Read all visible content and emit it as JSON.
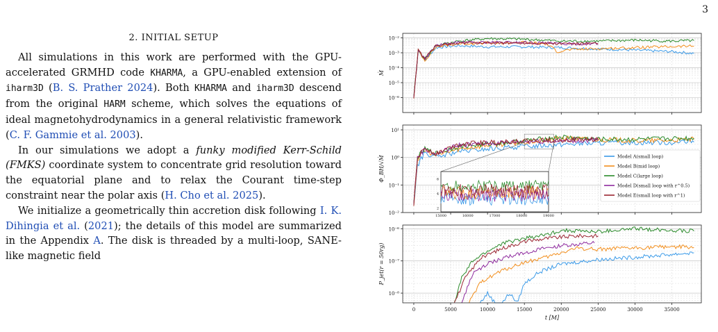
{
  "page_number": "3",
  "section": {
    "title": "2. INITIAL SETUP"
  },
  "paragraphs": {
    "p1": {
      "a": "All simulations in this work are performed with the GPU-accelerated GRMHD code ",
      "code1": "KHARMA",
      "b": ", a GPU-enabled extension of ",
      "code2": "iharm3D",
      "c": " (",
      "cite1": "B. S. Prather 2024",
      "d": "). Both ",
      "code3": "KHARMA",
      "e": " and ",
      "code4": "iharm3D",
      "f": " descend from the original ",
      "code5": "HARM",
      "g": " scheme, which solves the equations of ideal magnetohydrodynamics in a general relativistic framework (",
      "cite2": "C. F. Gammie et al. 2003",
      "h": ")."
    },
    "p2": {
      "a": "In our simulations we adopt a ",
      "em": "funky modified Kerr-Schild (FMKS)",
      "b": " coordinate system to concentrate grid resolution toward the equatorial plane and to relax the Courant time-step constraint near the polar axis (",
      "cite": "H. Cho et al. 2025",
      "c": ")."
    },
    "p3": {
      "a": "We initialize a geometrically thin accretion disk following ",
      "cite1": "I. K. Dihingia et al.",
      "b": " (",
      "cite2": "2021",
      "c": "); the details of this model are summarized in the Appendix ",
      "cite3": "A",
      "d": ". The disk is threaded by a multi-loop, SANE-like magnetic field"
    }
  },
  "figure": {
    "panels": [
      {
        "ylabel": "Ṁ",
        "yticks": [
          "10⁻²",
          "10⁻³",
          "10⁻⁴",
          "10⁻⁵",
          "10⁻⁶"
        ]
      },
      {
        "ylabel": "Φ_BH/√Ṁ",
        "yticks": [
          "10¹",
          "10⁰",
          "10⁻¹",
          "10⁻²"
        ]
      },
      {
        "ylabel": "P_jet(r = 50rg)",
        "yticks": [
          "10⁻⁶",
          "10⁻⁷",
          "10⁻⁸"
        ]
      }
    ],
    "inset": {
      "xticks": [
        "15000",
        "16000",
        "17000",
        "18000",
        "19000"
      ],
      "yticks": [
        "6",
        "4",
        "2"
      ]
    },
    "xticks": [
      "0",
      "5000",
      "10000",
      "15000",
      "20000",
      "25000",
      "30000",
      "35000"
    ],
    "xlabel": "t [M]",
    "legend": [
      {
        "label": "Model A(small loop)",
        "color": "#3a9ae8"
      },
      {
        "label": "Model B(mid loop)",
        "color": "#f28e1c"
      },
      {
        "label": "Model C(large loop)",
        "color": "#2a8a2a"
      },
      {
        "label": "Model D(small loop with r^0.5)",
        "color": "#8e2a9e"
      },
      {
        "label": "Model E(small loop with r^1)",
        "color": "#9a2430"
      }
    ]
  },
  "chart_data": [
    {
      "type": "line",
      "ylabel": "Ṁ",
      "yscale": "log",
      "ylim": [
        1e-07,
        0.02
      ],
      "xlim": [
        -1500,
        39000
      ],
      "grid": true,
      "series": [
        {
          "name": "Model A(small loop)",
          "x": [
            0,
            600,
            1500,
            3000,
            6000,
            10000,
            15000,
            20000,
            25000,
            30000,
            35000,
            38000
          ],
          "y": [
            1e-06,
            0.0015,
            0.0003,
            0.0022,
            0.003,
            0.0025,
            0.0025,
            0.0022,
            0.0018,
            0.0015,
            0.0012,
            0.0009
          ]
        },
        {
          "name": "Model B(mid loop)",
          "x": [
            0,
            600,
            1500,
            3000,
            6000,
            10000,
            15000,
            18000,
            19500,
            21000,
            25000,
            30000,
            35000,
            38000
          ],
          "y": [
            1e-06,
            0.0015,
            0.0003,
            0.0025,
            0.004,
            0.0045,
            0.005,
            0.004,
            0.0012,
            0.0016,
            0.0019,
            0.0022,
            0.0026,
            0.0028
          ]
        },
        {
          "name": "Model C(large loop)",
          "x": [
            0,
            600,
            1500,
            3000,
            6000,
            10000,
            15000,
            20000,
            25000,
            30000,
            35000,
            38000
          ],
          "y": [
            1e-06,
            0.0015,
            0.0004,
            0.003,
            0.006,
            0.009,
            0.008,
            0.006,
            0.006,
            0.007,
            0.006,
            0.0065
          ]
        },
        {
          "name": "Model D(small loop with r^0.5)",
          "x": [
            0,
            600,
            1500,
            3000,
            6000,
            10000,
            15000,
            20000,
            25000
          ],
          "y": [
            1e-06,
            0.0015,
            0.0004,
            0.003,
            0.005,
            0.005,
            0.005,
            0.004,
            0.004
          ]
        },
        {
          "name": "Model E(small loop with r^1)",
          "x": [
            0,
            600,
            1500,
            3000,
            6000,
            10000,
            15000,
            20000,
            25000
          ],
          "y": [
            1e-06,
            0.0015,
            0.0004,
            0.003,
            0.0045,
            0.0045,
            0.0045,
            0.004,
            0.004
          ]
        }
      ]
    },
    {
      "type": "line",
      "ylabel": "Φ_BH/√Ṁ",
      "yscale": "log",
      "ylim": [
        0.01,
        15
      ],
      "xlim": [
        -1500,
        39000
      ],
      "grid": true,
      "series": [
        {
          "name": "Model A(small loop)",
          "x": [
            0,
            500,
            1500,
            3000,
            6000,
            10000,
            15000,
            20000,
            25000,
            30000,
            35000,
            38000
          ],
          "y": [
            0.02,
            0.5,
            1.5,
            1.0,
            1.6,
            2.0,
            2.5,
            3.0,
            3.3,
            3.5,
            3.5,
            3.6
          ]
        },
        {
          "name": "Model B(mid loop)",
          "x": [
            0,
            500,
            1500,
            3000,
            6000,
            10000,
            15000,
            20000,
            25000,
            30000,
            35000,
            38000
          ],
          "y": [
            0.02,
            0.8,
            1.8,
            1.2,
            2.0,
            2.8,
            3.5,
            5.0,
            4.5,
            4.0,
            4.2,
            4.5
          ]
        },
        {
          "name": "Model C(large loop)",
          "x": [
            0,
            500,
            1500,
            3000,
            6000,
            10000,
            15000,
            20000,
            25000,
            30000,
            35000,
            38000
          ],
          "y": [
            0.02,
            1.0,
            2.0,
            1.4,
            2.5,
            3.0,
            4.0,
            5.5,
            4.5,
            4.5,
            4.8,
            5.0
          ]
        },
        {
          "name": "Model D(small loop with r^0.5)",
          "x": [
            0,
            500,
            1500,
            3000,
            6000,
            10000,
            15000,
            20000,
            25000
          ],
          "y": [
            0.02,
            1.0,
            2.0,
            1.3,
            2.8,
            3.2,
            3.8,
            4.0,
            4.2
          ]
        },
        {
          "name": "Model E(small loop with r^1)",
          "x": [
            0,
            500,
            1500,
            3000,
            6000,
            10000,
            15000,
            20000,
            25000
          ],
          "y": [
            0.02,
            1.0,
            2.2,
            1.4,
            3.0,
            3.5,
            4.0,
            4.3,
            4.5
          ]
        }
      ]
    },
    {
      "type": "line",
      "ylabel": "P_jet(r = 50rg)",
      "yscale": "log",
      "ylim": [
        5e-09,
        1.3e-06
      ],
      "xlim": [
        -1500,
        39000
      ],
      "grid": true,
      "series": [
        {
          "name": "Model A(small loop)",
          "x": [
            9000,
            10000,
            11000,
            12000,
            13000,
            14000,
            15000,
            17000,
            20000,
            25000,
            30000,
            35000,
            38000
          ],
          "y": [
            5e-09,
            1e-08,
            5e-09,
            5e-09,
            1e-08,
            5e-09,
            2e-08,
            4.5e-08,
            8e-08,
            1.1e-07,
            1.3e-07,
            1.6e-07,
            1.8e-07
          ]
        },
        {
          "name": "Model B(mid loop)",
          "x": [
            7500,
            9000,
            10000,
            12000,
            15000,
            18000,
            20000,
            22000,
            25000,
            30000,
            35000,
            38000
          ],
          "y": [
            5e-09,
            2e-08,
            3e-08,
            5e-08,
            9e-08,
            1.3e-07,
            1.8e-07,
            2.5e-07,
            2.3e-07,
            2.5e-07,
            2.8e-07,
            2.6e-07
          ]
        },
        {
          "name": "Model C(large loop)",
          "x": [
            5500,
            6500,
            8000,
            10000,
            12000,
            15000,
            18000,
            20000,
            25000,
            30000,
            35000,
            38000
          ],
          "y": [
            5e-09,
            3e-08,
            1e-07,
            2e-07,
            3.5e-07,
            5e-07,
            6.5e-07,
            9e-07,
            8e-07,
            1e-06,
            9e-07,
            8.5e-07
          ]
        },
        {
          "name": "Model D(small loop with r^0.5)",
          "x": [
            6500,
            8000,
            10000,
            12000,
            15000,
            18000,
            20000,
            22000,
            24500
          ],
          "y": [
            5e-09,
            4e-08,
            8e-08,
            1.2e-07,
            1.8e-07,
            2.5e-07,
            3e-07,
            3.2e-07,
            3.6e-07
          ]
        },
        {
          "name": "Model E(small loop with r^1)",
          "x": [
            5500,
            7000,
            9000,
            12000,
            15000,
            18000,
            20000,
            22000,
            25000
          ],
          "y": [
            5e-09,
            3e-08,
            1.2e-07,
            2.5e-07,
            4e-07,
            5e-07,
            5.5e-07,
            6e-07,
            6e-07
          ]
        }
      ]
    }
  ]
}
